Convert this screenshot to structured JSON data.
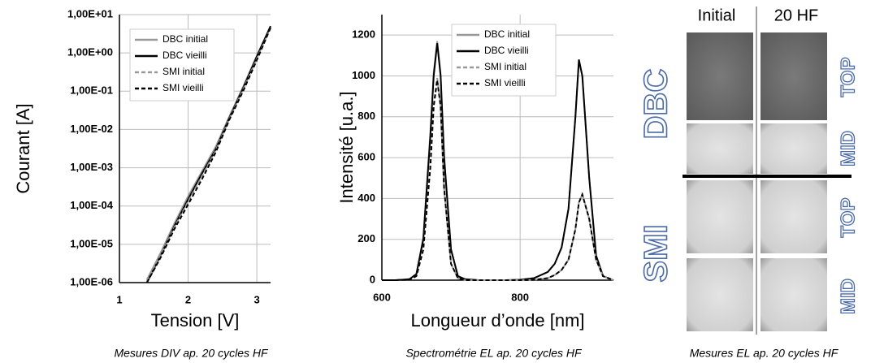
{
  "chart_data": [
    {
      "type": "line",
      "log_y": true,
      "grid": true,
      "legend": "upper left",
      "xlabel": "Tension [V]",
      "ylabel": "Courant [A]",
      "caption": "Mesures DIV ap. 20 cycles HF",
      "x": [
        1.4,
        1.6,
        1.8,
        2.0,
        2.2,
        2.4,
        2.6,
        2.8,
        3.0,
        3.2
      ],
      "xlim": [
        1,
        3.2
      ],
      "xticks": [
        1,
        2,
        3
      ],
      "ylim": [
        1e-06,
        10
      ],
      "yticks": [
        {
          "value": 1e-06,
          "label": "1,00E-06"
        },
        {
          "value": 1e-05,
          "label": "1,00E-05"
        },
        {
          "value": 0.0001,
          "label": "1,00E-04"
        },
        {
          "value": 0.001,
          "label": "1,00E-03"
        },
        {
          "value": 0.01,
          "label": "1,00E-02"
        },
        {
          "value": 0.1,
          "label": "1,00E-01"
        },
        {
          "value": 1,
          "label": "1,00E+00"
        },
        {
          "value": 10,
          "label": "1,00E+01"
        }
      ],
      "series": [
        {
          "name": "DBC initial",
          "color": "#999999",
          "dash": false,
          "values": [
            1.2e-06,
            6e-06,
            3.5e-05,
            0.00018,
            0.0008,
            0.0035,
            0.022,
            0.13,
            0.85,
            5
          ]
        },
        {
          "name": "DBC vieilli",
          "color": "#000000",
          "dash": false,
          "values": [
            1e-06,
            5e-06,
            3e-05,
            0.00015,
            0.0007,
            0.003,
            0.02,
            0.12,
            0.8,
            5
          ]
        },
        {
          "name": "SMI initial",
          "color": "#999999",
          "dash": true,
          "values": [
            1.1e-06,
            5e-06,
            2.8e-05,
            0.00013,
            0.0006,
            0.0028,
            0.019,
            0.11,
            0.7,
            4.5
          ]
        },
        {
          "name": "SMI vieilli",
          "color": "#000000",
          "dash": true,
          "values": [
            1e-06,
            4.5e-06,
            2.5e-05,
            0.00011,
            0.0005,
            0.0025,
            0.018,
            0.1,
            0.65,
            4.5
          ]
        }
      ]
    },
    {
      "type": "line",
      "log_y": false,
      "grid": true,
      "legend": "upper center",
      "xlabel": "Longueur d’onde [nm]",
      "ylabel": "Intensité [u.a.]",
      "caption": "Spectrométrie EL ap. 20 cycles HF",
      "x": [
        600,
        620,
        640,
        650,
        660,
        670,
        675,
        680,
        685,
        690,
        700,
        710,
        720,
        740,
        760,
        780,
        800,
        820,
        840,
        850,
        860,
        870,
        880,
        885,
        890,
        900,
        910,
        920,
        935
      ],
      "xlim": [
        600,
        935
      ],
      "xticks": [
        600,
        800
      ],
      "ylim": [
        0,
        1300
      ],
      "yticks": [
        0,
        200,
        400,
        600,
        800,
        1000,
        1200
      ],
      "series": [
        {
          "name": "DBC initial",
          "color": "#999999",
          "dash": false,
          "values": [
            0,
            0,
            5,
            30,
            210,
            720,
            1020,
            1170,
            1010,
            610,
            150,
            20,
            5,
            0,
            0,
            0,
            2,
            10,
            40,
            80,
            160,
            350,
            800,
            1075,
            1000,
            500,
            120,
            20,
            0
          ]
        },
        {
          "name": "DBC vieilli",
          "color": "#000000",
          "dash": false,
          "values": [
            0,
            0,
            5,
            30,
            200,
            700,
            1000,
            1160,
            1000,
            600,
            150,
            20,
            5,
            0,
            0,
            0,
            2,
            10,
            40,
            80,
            160,
            350,
            800,
            1080,
            1000,
            500,
            120,
            20,
            0
          ]
        },
        {
          "name": "SMI initial",
          "color": "#999999",
          "dash": true,
          "values": [
            0,
            0,
            2,
            20,
            150,
            560,
            860,
            990,
            860,
            450,
            80,
            10,
            0,
            0,
            0,
            0,
            0,
            2,
            10,
            25,
            50,
            100,
            250,
            380,
            420,
            300,
            100,
            20,
            0
          ]
        },
        {
          "name": "SMI vieilli",
          "color": "#000000",
          "dash": true,
          "values": [
            0,
            0,
            2,
            20,
            150,
            550,
            850,
            980,
            850,
            450,
            80,
            10,
            0,
            0,
            0,
            0,
            0,
            2,
            10,
            25,
            50,
            100,
            250,
            380,
            420,
            300,
            100,
            20,
            0
          ]
        }
      ]
    }
  ],
  "el_images": {
    "columns": [
      "Initial",
      "20 HF"
    ],
    "groups": [
      {
        "label": "DBC",
        "rows": [
          "TOP",
          "MID"
        ]
      },
      {
        "label": "SMI",
        "rows": [
          "TOP",
          "MID"
        ]
      }
    ],
    "caption": "Mesures EL ap. 20 cycles HF"
  }
}
